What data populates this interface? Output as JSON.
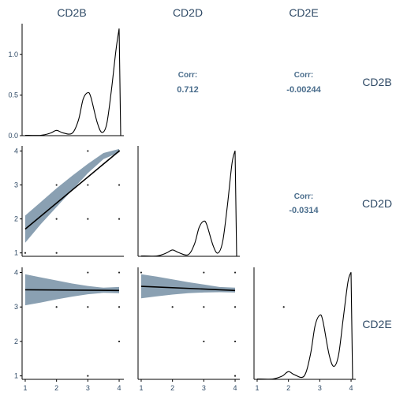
{
  "chart_data": {
    "type": "scatter-matrix",
    "variables": [
      "CD2B",
      "CD2D",
      "CD2E"
    ],
    "column_labels": [
      "CD2B",
      "CD2D",
      "CD2E"
    ],
    "row_labels": [
      "CD2B",
      "CD2D",
      "CD2E"
    ],
    "colors": {
      "band": "#8aa0b2",
      "line": "#000000",
      "point": "#222222",
      "text": "#2f4a66",
      "corr": "#4a6d8c"
    },
    "diagonal": [
      {
        "variable": "CD2B",
        "type": "density",
        "xlim": [
          0.9,
          4.15
        ],
        "ylim": [
          0,
          1.38
        ],
        "y_ticks": [
          0.0,
          0.5,
          1.0
        ],
        "y_tick_labels": [
          "0.0",
          "0.5",
          "1.0"
        ],
        "density": [
          [
            1.0,
            0.005
          ],
          [
            1.5,
            0.005
          ],
          [
            1.8,
            0.03
          ],
          [
            2.0,
            0.065
          ],
          [
            2.2,
            0.035
          ],
          [
            2.5,
            0.03
          ],
          [
            2.7,
            0.19
          ],
          [
            2.85,
            0.45
          ],
          [
            3.0,
            0.53
          ],
          [
            3.1,
            0.47
          ],
          [
            3.3,
            0.16
          ],
          [
            3.45,
            0.04
          ],
          [
            3.6,
            0.14
          ],
          [
            3.75,
            0.55
          ],
          [
            3.9,
            1.06
          ],
          [
            4.0,
            1.32
          ],
          [
            4.05,
            0.0
          ]
        ]
      },
      {
        "variable": "CD2D",
        "type": "density",
        "xlim": [
          0.9,
          4.15
        ],
        "ylim": [
          0,
          1.38
        ],
        "density": [
          [
            1.0,
            0.005
          ],
          [
            1.5,
            0.005
          ],
          [
            1.8,
            0.04
          ],
          [
            2.0,
            0.08
          ],
          [
            2.2,
            0.045
          ],
          [
            2.5,
            0.02
          ],
          [
            2.7,
            0.15
          ],
          [
            2.85,
            0.36
          ],
          [
            3.0,
            0.44
          ],
          [
            3.1,
            0.39
          ],
          [
            3.3,
            0.13
          ],
          [
            3.45,
            0.04
          ],
          [
            3.6,
            0.18
          ],
          [
            3.75,
            0.62
          ],
          [
            3.9,
            1.16
          ],
          [
            4.0,
            1.32
          ],
          [
            4.05,
            0.0
          ]
        ]
      },
      {
        "variable": "CD2E",
        "type": "density",
        "xlim": [
          0.9,
          4.15
        ],
        "ylim": [
          0,
          1.38
        ],
        "x_ticks": [
          1,
          2,
          3,
          4
        ],
        "x_tick_labels": [
          "1",
          "2",
          "3",
          "4"
        ],
        "density": [
          [
            1.0,
            0.005
          ],
          [
            1.5,
            0.005
          ],
          [
            1.8,
            0.04
          ],
          [
            2.0,
            0.095
          ],
          [
            2.2,
            0.055
          ],
          [
            2.5,
            0.04
          ],
          [
            2.7,
            0.3
          ],
          [
            2.85,
            0.66
          ],
          [
            3.0,
            0.79
          ],
          [
            3.1,
            0.72
          ],
          [
            3.3,
            0.3
          ],
          [
            3.45,
            0.16
          ],
          [
            3.6,
            0.3
          ],
          [
            3.75,
            0.75
          ],
          [
            3.9,
            1.2
          ],
          [
            4.0,
            1.32
          ],
          [
            4.05,
            0.0
          ]
        ]
      }
    ],
    "correlations": [
      {
        "row": 0,
        "col": 1,
        "label": "Corr:",
        "value": "0.712"
      },
      {
        "row": 0,
        "col": 2,
        "label": "Corr:",
        "value": "-0.00244"
      },
      {
        "row": 1,
        "col": 2,
        "label": "Corr:",
        "value": "-0.0314"
      }
    ],
    "scatter": [
      {
        "row": 1,
        "col": 0,
        "x": "CD2B",
        "y": "CD2D",
        "xlim": [
          0.9,
          4.15
        ],
        "ylim": [
          0.9,
          4.15
        ],
        "y_ticks": [
          1,
          2,
          3,
          4
        ],
        "y_tick_labels": [
          "1",
          "2",
          "3",
          "4"
        ],
        "points": [
          [
            1,
            1
          ],
          [
            2,
            1
          ],
          [
            2,
            2
          ],
          [
            2,
            3
          ],
          [
            3,
            2
          ],
          [
            3,
            3
          ],
          [
            3,
            4
          ],
          [
            4,
            2
          ],
          [
            4,
            3
          ],
          [
            4,
            4
          ]
        ],
        "fit": {
          "x0": 1,
          "y0": 1.7,
          "x1": 4,
          "y1": 4.0
        },
        "band": [
          [
            1,
            1.3,
            2.1
          ],
          [
            1.5,
            1.85,
            2.5
          ],
          [
            2,
            2.35,
            2.9
          ],
          [
            2.5,
            2.85,
            3.27
          ],
          [
            3,
            3.35,
            3.62
          ],
          [
            3.5,
            3.76,
            3.94
          ],
          [
            4,
            3.96,
            4.06
          ]
        ]
      },
      {
        "row": 2,
        "col": 0,
        "x": "CD2B",
        "y": "CD2E",
        "xlim": [
          0.9,
          4.15
        ],
        "ylim": [
          0.9,
          4.15
        ],
        "y_ticks": [
          1,
          2,
          3,
          4
        ],
        "y_tick_labels": [
          "1",
          "2",
          "3",
          "4"
        ],
        "x_ticks": [
          1,
          2,
          3,
          4
        ],
        "x_tick_labels": [
          "1",
          "2",
          "3",
          "4"
        ],
        "points": [
          [
            2,
            3
          ],
          [
            3,
            1
          ],
          [
            3,
            3
          ],
          [
            3,
            4
          ],
          [
            4,
            2
          ],
          [
            4,
            3
          ],
          [
            4,
            4
          ]
        ],
        "fit": {
          "x0": 1,
          "y0": 3.5,
          "x1": 4,
          "y1": 3.48
        },
        "band": [
          [
            1,
            3.05,
            3.95
          ],
          [
            1.5,
            3.13,
            3.86
          ],
          [
            2,
            3.22,
            3.77
          ],
          [
            2.5,
            3.3,
            3.68
          ],
          [
            3,
            3.37,
            3.61
          ],
          [
            3.5,
            3.41,
            3.56
          ],
          [
            4,
            3.4,
            3.58
          ]
        ]
      },
      {
        "row": 2,
        "col": 1,
        "x": "CD2D",
        "y": "CD2E",
        "xlim": [
          0.9,
          4.15
        ],
        "ylim": [
          0.9,
          4.15
        ],
        "x_ticks": [
          1,
          2,
          3,
          4
        ],
        "x_tick_labels": [
          "1",
          "2",
          "3",
          "4"
        ],
        "points": [
          [
            1,
            4
          ],
          [
            2,
            3
          ],
          [
            3,
            2
          ],
          [
            3,
            3
          ],
          [
            3,
            4
          ],
          [
            4,
            1
          ],
          [
            4,
            2
          ],
          [
            4,
            3
          ],
          [
            4,
            4
          ]
        ],
        "fit": {
          "x0": 1,
          "y0": 3.6,
          "x1": 4,
          "y1": 3.48
        },
        "band": [
          [
            1,
            3.25,
            3.95
          ],
          [
            1.5,
            3.31,
            3.88
          ],
          [
            2,
            3.36,
            3.8
          ],
          [
            2.5,
            3.4,
            3.72
          ],
          [
            3,
            3.42,
            3.65
          ],
          [
            3.5,
            3.43,
            3.58
          ],
          [
            4,
            3.42,
            3.56
          ]
        ]
      }
    ],
    "extra_points": [
      {
        "row": 2,
        "col": 2,
        "x": 1.85,
        "y": 3.0
      }
    ]
  }
}
